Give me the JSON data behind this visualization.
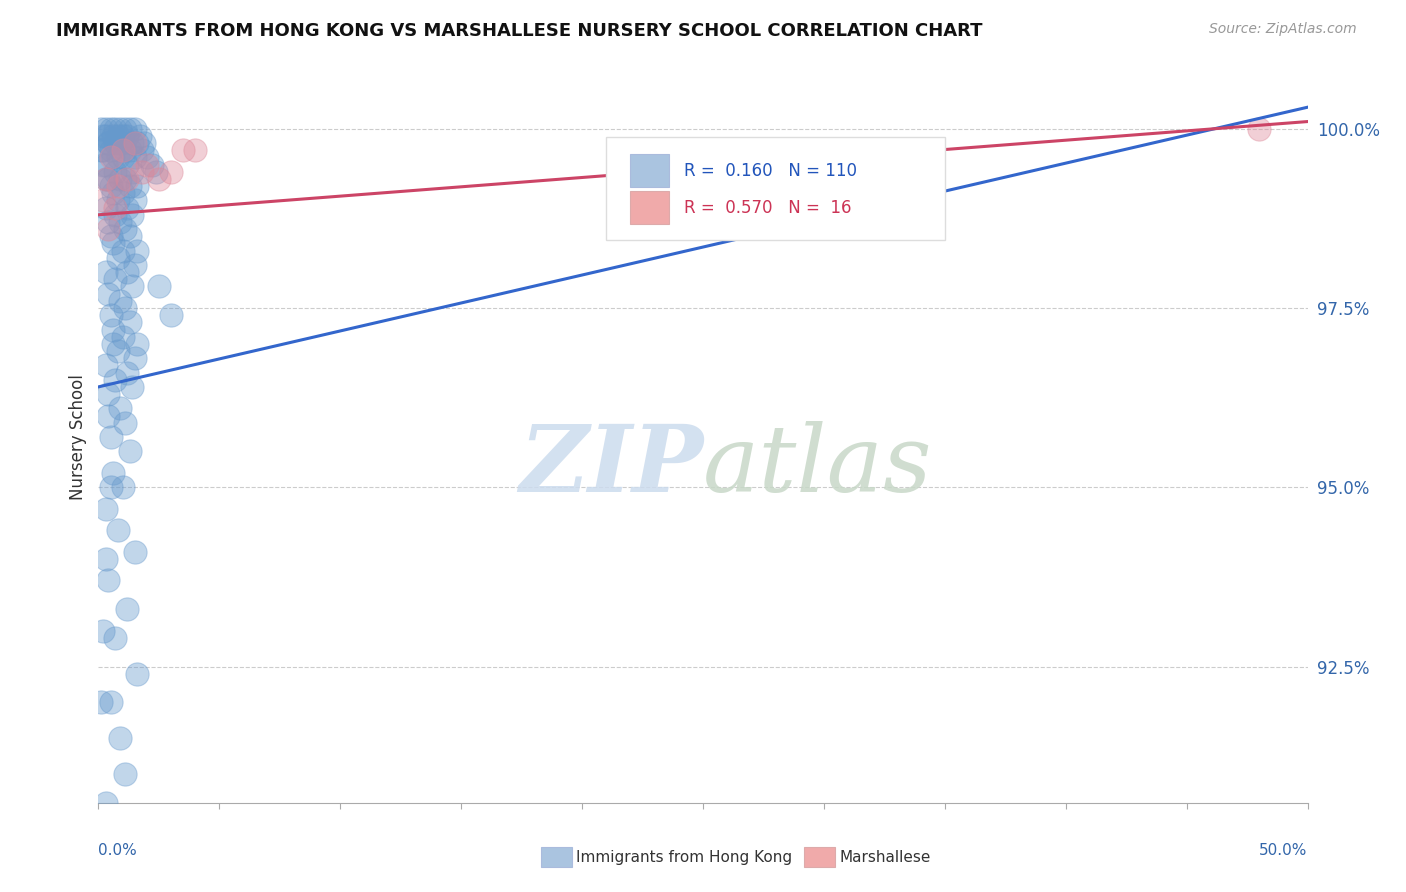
{
  "title": "IMMIGRANTS FROM HONG KONG VS MARSHALLESE NURSERY SCHOOL CORRELATION CHART",
  "source": "Source: ZipAtlas.com",
  "ylabel": "Nursery School",
  "ytick_labels": [
    "100.0%",
    "97.5%",
    "95.0%",
    "92.5%"
  ],
  "ytick_values": [
    1.0,
    0.975,
    0.95,
    0.925
  ],
  "xmin": 0.0,
  "xmax": 0.5,
  "ymin": 0.906,
  "ymax": 1.008,
  "legend_color1": "#aac4e0",
  "legend_color2": "#f0aaaa",
  "blue_color": "#6699cc",
  "pink_color": "#dd8899",
  "blue_line_x": [
    0.0,
    0.5
  ],
  "blue_line_y": [
    0.964,
    1.003
  ],
  "pink_line_x": [
    0.0,
    0.5
  ],
  "pink_line_y": [
    0.988,
    1.001
  ],
  "blue_dots": [
    [
      0.003,
      1.0
    ],
    [
      0.005,
      1.0
    ],
    [
      0.007,
      1.0
    ],
    [
      0.009,
      1.0
    ],
    [
      0.011,
      1.0
    ],
    [
      0.013,
      1.0
    ],
    [
      0.015,
      1.0
    ],
    [
      0.003,
      0.999
    ],
    [
      0.006,
      0.999
    ],
    [
      0.008,
      0.999
    ],
    [
      0.01,
      0.999
    ],
    [
      0.012,
      0.999
    ],
    [
      0.004,
      0.998
    ],
    [
      0.007,
      0.998
    ],
    [
      0.009,
      0.998
    ],
    [
      0.014,
      0.998
    ],
    [
      0.016,
      0.998
    ],
    [
      0.005,
      0.997
    ],
    [
      0.011,
      0.997
    ],
    [
      0.013,
      0.997
    ],
    [
      0.002,
      0.997
    ],
    [
      0.006,
      0.996
    ],
    [
      0.008,
      0.996
    ],
    [
      0.015,
      0.996
    ],
    [
      0.01,
      0.996
    ],
    [
      0.003,
      0.995
    ],
    [
      0.012,
      0.995
    ],
    [
      0.007,
      0.994
    ],
    [
      0.014,
      0.994
    ],
    [
      0.004,
      0.993
    ],
    [
      0.009,
      0.993
    ],
    [
      0.011,
      0.993
    ],
    [
      0.005,
      0.992
    ],
    [
      0.013,
      0.992
    ],
    [
      0.016,
      0.992
    ],
    [
      0.006,
      0.991
    ],
    [
      0.01,
      0.991
    ],
    [
      0.008,
      0.99
    ],
    [
      0.015,
      0.99
    ],
    [
      0.003,
      0.989
    ],
    [
      0.012,
      0.989
    ],
    [
      0.007,
      0.988
    ],
    [
      0.014,
      0.988
    ],
    [
      0.004,
      0.987
    ],
    [
      0.009,
      0.987
    ],
    [
      0.011,
      0.986
    ],
    [
      0.005,
      0.985
    ],
    [
      0.013,
      0.985
    ],
    [
      0.006,
      0.984
    ],
    [
      0.01,
      0.983
    ],
    [
      0.016,
      0.983
    ],
    [
      0.008,
      0.982
    ],
    [
      0.015,
      0.981
    ],
    [
      0.003,
      0.98
    ],
    [
      0.012,
      0.98
    ],
    [
      0.007,
      0.979
    ],
    [
      0.014,
      0.978
    ],
    [
      0.004,
      0.977
    ],
    [
      0.009,
      0.976
    ],
    [
      0.011,
      0.975
    ],
    [
      0.005,
      0.974
    ],
    [
      0.013,
      0.973
    ],
    [
      0.006,
      0.972
    ],
    [
      0.01,
      0.971
    ],
    [
      0.016,
      0.97
    ],
    [
      0.008,
      0.969
    ],
    [
      0.015,
      0.968
    ],
    [
      0.003,
      0.967
    ],
    [
      0.012,
      0.966
    ],
    [
      0.007,
      0.965
    ],
    [
      0.014,
      0.964
    ],
    [
      0.004,
      0.963
    ],
    [
      0.009,
      0.961
    ],
    [
      0.011,
      0.959
    ],
    [
      0.005,
      0.957
    ],
    [
      0.013,
      0.955
    ],
    [
      0.006,
      0.952
    ],
    [
      0.01,
      0.95
    ],
    [
      0.003,
      0.947
    ],
    [
      0.008,
      0.944
    ],
    [
      0.015,
      0.941
    ],
    [
      0.004,
      0.937
    ],
    [
      0.012,
      0.933
    ],
    [
      0.007,
      0.929
    ],
    [
      0.016,
      0.924
    ],
    [
      0.005,
      0.92
    ],
    [
      0.009,
      0.915
    ],
    [
      0.011,
      0.91
    ],
    [
      0.003,
      0.906
    ],
    [
      0.018,
      0.997
    ],
    [
      0.02,
      0.996
    ],
    [
      0.022,
      0.995
    ],
    [
      0.024,
      0.994
    ],
    [
      0.017,
      0.999
    ],
    [
      0.019,
      0.998
    ],
    [
      0.002,
      0.999
    ],
    [
      0.001,
      1.0
    ],
    [
      0.004,
      0.998
    ],
    [
      0.025,
      0.978
    ],
    [
      0.03,
      0.974
    ],
    [
      0.002,
      0.995
    ],
    [
      0.001,
      0.997
    ],
    [
      0.003,
      0.993
    ],
    [
      0.006,
      0.97
    ],
    [
      0.004,
      0.96
    ],
    [
      0.005,
      0.95
    ],
    [
      0.003,
      0.94
    ],
    [
      0.002,
      0.93
    ],
    [
      0.001,
      0.92
    ]
  ],
  "pink_dots": [
    [
      0.005,
      0.996
    ],
    [
      0.01,
      0.997
    ],
    [
      0.003,
      0.993
    ],
    [
      0.015,
      0.998
    ],
    [
      0.03,
      0.994
    ],
    [
      0.008,
      0.992
    ],
    [
      0.012,
      0.993
    ],
    [
      0.02,
      0.995
    ],
    [
      0.025,
      0.993
    ],
    [
      0.002,
      0.99
    ],
    [
      0.007,
      0.989
    ],
    [
      0.018,
      0.994
    ],
    [
      0.004,
      0.986
    ],
    [
      0.04,
      0.997
    ],
    [
      0.035,
      0.997
    ],
    [
      0.48,
      1.0
    ]
  ]
}
